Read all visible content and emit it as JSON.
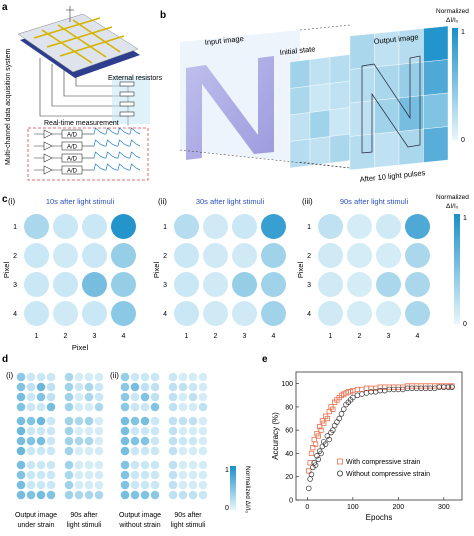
{
  "panel_a": {
    "letter": "a",
    "system_label": "Multi-channel data acquisition system",
    "resistor_label": "External resistors",
    "measure_label": "Real-time measurement",
    "adc_labels": [
      "A/D",
      "A/D",
      "A/D",
      "A/D"
    ]
  },
  "panel_b": {
    "letter": "b",
    "input_label": "Input image",
    "initial_label": "Initial state",
    "output_label": "Output image",
    "pulse_label": "After 10 light pulses",
    "colorbar_title_1": "Normalized",
    "colorbar_title_2": "ΔI/I₀",
    "colorbar_max": "1",
    "colorbar_min": "0",
    "initial_grid": [
      [
        0.35,
        0.2,
        0.25,
        0.15
      ],
      [
        0.3,
        0.15,
        0.2,
        0.25
      ],
      [
        0.2,
        0.35,
        0.15,
        0.3
      ],
      [
        0.25,
        0.2,
        0.3,
        0.2
      ]
    ],
    "output_grid": [
      [
        0.3,
        0.2,
        0.25,
        0.95
      ],
      [
        0.25,
        0.3,
        0.4,
        0.75
      ],
      [
        0.2,
        0.35,
        0.55,
        0.5
      ],
      [
        0.25,
        0.2,
        0.3,
        0.7
      ]
    ]
  },
  "panel_c": {
    "letter": "c",
    "colorbar_title_1": "Normalized",
    "colorbar_title_2": "ΔI/I₀",
    "colorbar_max": "1",
    "colorbar_min": "0",
    "x_axis_label": "Pixel",
    "y_axis_label": "Pixel",
    "ticks": [
      "1",
      "2",
      "3",
      "4"
    ],
    "subpanels": [
      {
        "roman": "(i)",
        "title": "10s after light stimuli",
        "grid": [
          [
            0.3,
            0.15,
            0.15,
            0.95
          ],
          [
            0.15,
            0.12,
            0.15,
            0.4
          ],
          [
            0.15,
            0.15,
            0.55,
            0.4
          ],
          [
            0.15,
            0.12,
            0.15,
            0.45
          ]
        ]
      },
      {
        "roman": "(ii)",
        "title": "30s after light stimuli",
        "grid": [
          [
            0.25,
            0.12,
            0.15,
            0.85
          ],
          [
            0.15,
            0.12,
            0.12,
            0.35
          ],
          [
            0.15,
            0.12,
            0.4,
            0.35
          ],
          [
            0.15,
            0.12,
            0.12,
            0.35
          ]
        ]
      },
      {
        "roman": "(iii)",
        "title": "90s after light stimuli",
        "grid": [
          [
            0.2,
            0.1,
            0.12,
            0.75
          ],
          [
            0.12,
            0.1,
            0.1,
            0.3
          ],
          [
            0.12,
            0.1,
            0.3,
            0.3
          ],
          [
            0.12,
            0.1,
            0.1,
            0.3
          ]
        ]
      }
    ]
  },
  "panel_d": {
    "letter": "d",
    "colorbar_title": "Normalized ΔI/I₀",
    "colorbar_max": "1",
    "colorbar_min": "0",
    "subpanels": [
      {
        "roman": "(i)",
        "caption_left_1": "Output image",
        "caption_left_2": "under strain",
        "caption_right_1": "90s after",
        "caption_right_2": "light stimuli",
        "rows": [
          {
            "left": [
              [
                0.45,
                0.15,
                0.15,
                0.15
              ],
              [
                0.5,
                0.2,
                0.6,
                0.2
              ],
              [
                0.55,
                0.15,
                0.5,
                0.2
              ],
              [
                0.5,
                0.15,
                0.15,
                0.55
              ]
            ],
            "right": [
              [
                0.3,
                0.1,
                0.1,
                0.1
              ],
              [
                0.35,
                0.15,
                0.3,
                0.15
              ],
              [
                0.35,
                0.1,
                0.3,
                0.15
              ],
              [
                0.35,
                0.1,
                0.1,
                0.3
              ]
            ]
          },
          {
            "left": [
              [
                0.55,
                0.5,
                0.6,
                0.15
              ],
              [
                0.6,
                0.15,
                0.15,
                0.15
              ],
              [
                0.55,
                0.5,
                0.55,
                0.15
              ],
              [
                0.6,
                0.15,
                0.15,
                0.15
              ]
            ],
            "right": [
              [
                0.35,
                0.3,
                0.35,
                0.1
              ],
              [
                0.35,
                0.1,
                0.1,
                0.1
              ],
              [
                0.35,
                0.3,
                0.3,
                0.1
              ],
              [
                0.35,
                0.1,
                0.1,
                0.1
              ]
            ]
          },
          {
            "left": [
              [
                0.55,
                0.15,
                0.15,
                0.15
              ],
              [
                0.5,
                0.15,
                0.15,
                0.15
              ],
              [
                0.55,
                0.15,
                0.15,
                0.15
              ],
              [
                0.55,
                0.5,
                0.55,
                0.5
              ]
            ],
            "right": [
              [
                0.35,
                0.1,
                0.1,
                0.1
              ],
              [
                0.3,
                0.1,
                0.1,
                0.1
              ],
              [
                0.35,
                0.1,
                0.1,
                0.1
              ],
              [
                0.35,
                0.3,
                0.3,
                0.3
              ]
            ]
          }
        ]
      },
      {
        "roman": "(ii)",
        "caption_left_1": "Output image",
        "caption_left_2": "without strain",
        "caption_right_1": "90s after",
        "caption_right_2": "light stimuli",
        "rows": [
          {
            "left": [
              [
                0.4,
                0.15,
                0.15,
                0.15
              ],
              [
                0.45,
                0.55,
                0.2,
                0.2
              ],
              [
                0.45,
                0.15,
                0.5,
                0.2
              ],
              [
                0.45,
                0.15,
                0.15,
                0.5
              ]
            ],
            "right": [
              [
                0.15,
                0.1,
                0.1,
                0.1
              ],
              [
                0.2,
                0.2,
                0.15,
                0.1
              ],
              [
                0.2,
                0.1,
                0.2,
                0.1
              ],
              [
                0.2,
                0.1,
                0.1,
                0.2
              ]
            ]
          },
          {
            "left": [
              [
                0.55,
                0.5,
                0.55,
                0.15
              ],
              [
                0.55,
                0.15,
                0.15,
                0.15
              ],
              [
                0.55,
                0.5,
                0.5,
                0.15
              ],
              [
                0.55,
                0.15,
                0.15,
                0.15
              ]
            ],
            "right": [
              [
                0.2,
                0.2,
                0.2,
                0.1
              ],
              [
                0.2,
                0.1,
                0.1,
                0.1
              ],
              [
                0.2,
                0.15,
                0.15,
                0.1
              ],
              [
                0.2,
                0.1,
                0.1,
                0.1
              ]
            ]
          },
          {
            "left": [
              [
                0.5,
                0.15,
                0.15,
                0.15
              ],
              [
                0.5,
                0.15,
                0.15,
                0.15
              ],
              [
                0.5,
                0.15,
                0.15,
                0.15
              ],
              [
                0.55,
                0.5,
                0.5,
                0.45
              ]
            ],
            "right": [
              [
                0.2,
                0.1,
                0.1,
                0.1
              ],
              [
                0.2,
                0.1,
                0.1,
                0.1
              ],
              [
                0.2,
                0.1,
                0.1,
                0.1
              ],
              [
                0.2,
                0.2,
                0.2,
                0.15
              ]
            ]
          }
        ]
      }
    ]
  },
  "chart_data": {
    "letter": "e",
    "type": "scatter",
    "xlabel": "Epochs",
    "ylabel": "Accuracy (%)",
    "xlim": [
      -25,
      340
    ],
    "ylim": [
      0,
      110
    ],
    "xticks": [
      0,
      100,
      200,
      300
    ],
    "yticks": [
      0,
      20,
      40,
      60,
      80,
      100
    ],
    "grid": false,
    "legend_placement": "bottom-right",
    "series": [
      {
        "name": "With compressive strain",
        "marker": "square",
        "color": "#e8704f",
        "points": [
          [
            3,
            25
          ],
          [
            6,
            32
          ],
          [
            9,
            40
          ],
          [
            12,
            45
          ],
          [
            15,
            52
          ],
          [
            18,
            48
          ],
          [
            21,
            57
          ],
          [
            24,
            55
          ],
          [
            27,
            63
          ],
          [
            30,
            60
          ],
          [
            33,
            68
          ],
          [
            36,
            66
          ],
          [
            40,
            72
          ],
          [
            44,
            70
          ],
          [
            48,
            76
          ],
          [
            52,
            80
          ],
          [
            56,
            78
          ],
          [
            60,
            84
          ],
          [
            65,
            86
          ],
          [
            70,
            88
          ],
          [
            75,
            90
          ],
          [
            80,
            91
          ],
          [
            85,
            92
          ],
          [
            90,
            93
          ],
          [
            95,
            93
          ],
          [
            100,
            94
          ],
          [
            110,
            95
          ],
          [
            120,
            95
          ],
          [
            130,
            96
          ],
          [
            140,
            96
          ],
          [
            150,
            96
          ],
          [
            160,
            97
          ],
          [
            170,
            97
          ],
          [
            180,
            97
          ],
          [
            190,
            97
          ],
          [
            200,
            97
          ],
          [
            210,
            97
          ],
          [
            220,
            98
          ],
          [
            230,
            98
          ],
          [
            240,
            98
          ],
          [
            250,
            98
          ],
          [
            260,
            98
          ],
          [
            270,
            98
          ],
          [
            280,
            98
          ],
          [
            290,
            98
          ],
          [
            300,
            98
          ],
          [
            310,
            98
          ],
          [
            318,
            98
          ]
        ]
      },
      {
        "name": "Without compressive strain",
        "marker": "circle",
        "color": "#333333",
        "points": [
          [
            3,
            10
          ],
          [
            6,
            18
          ],
          [
            9,
            22
          ],
          [
            12,
            28
          ],
          [
            15,
            32
          ],
          [
            18,
            30
          ],
          [
            21,
            38
          ],
          [
            24,
            35
          ],
          [
            27,
            42
          ],
          [
            30,
            40
          ],
          [
            33,
            46
          ],
          [
            36,
            50
          ],
          [
            40,
            48
          ],
          [
            44,
            55
          ],
          [
            48,
            52
          ],
          [
            52,
            58
          ],
          [
            56,
            60
          ],
          [
            60,
            64
          ],
          [
            65,
            67
          ],
          [
            70,
            70
          ],
          [
            75,
            74
          ],
          [
            80,
            78
          ],
          [
            85,
            82
          ],
          [
            90,
            84
          ],
          [
            95,
            86
          ],
          [
            100,
            88
          ],
          [
            110,
            90
          ],
          [
            120,
            91
          ],
          [
            130,
            92
          ],
          [
            140,
            93
          ],
          [
            150,
            93
          ],
          [
            160,
            94
          ],
          [
            170,
            94
          ],
          [
            180,
            95
          ],
          [
            190,
            95
          ],
          [
            200,
            95
          ],
          [
            210,
            95
          ],
          [
            220,
            96
          ],
          [
            230,
            96
          ],
          [
            240,
            96
          ],
          [
            250,
            96
          ],
          [
            260,
            96
          ],
          [
            270,
            96
          ],
          [
            280,
            96
          ],
          [
            290,
            97
          ],
          [
            300,
            97
          ],
          [
            310,
            97
          ],
          [
            318,
            97
          ]
        ]
      }
    ]
  }
}
